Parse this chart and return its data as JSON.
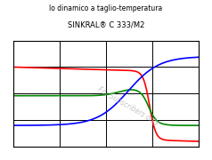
{
  "title1": "lo dinamico a taglio-temperatura",
  "title2": "SINKRAL® C 333/M2",
  "watermark": "For Subscribers only",
  "background_color": "#ffffff",
  "grid_color": "#000000",
  "colors": {
    "red": "#ff0000",
    "green": "#008800",
    "blue": "#0000ff"
  },
  "figsize": [
    2.38,
    1.8
  ],
  "dpi": 100,
  "xlim": [
    0,
    1
  ],
  "ylim": [
    0,
    1
  ]
}
